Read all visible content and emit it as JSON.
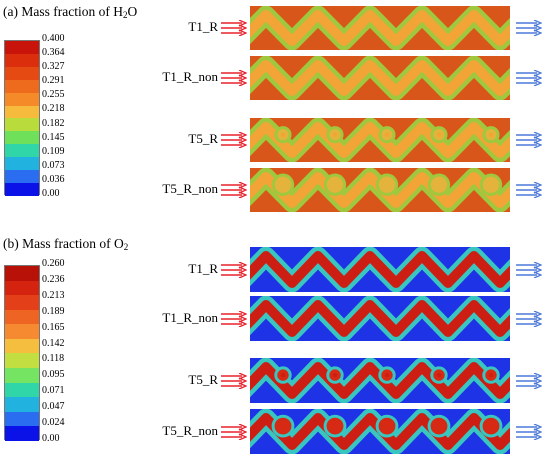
{
  "panels": [
    {
      "id": "h2o",
      "label_prefix": "(a) Mass fraction of H",
      "label_sub": "2",
      "label_suffix": "O",
      "ticks": [
        "0.400",
        "0.364",
        "0.327",
        "0.291",
        "0.255",
        "0.218",
        "0.182",
        "0.145",
        "0.109",
        "0.073",
        "0.036",
        "0.00"
      ],
      "colors": [
        "#c8140a",
        "#db2e0c",
        "#e54a12",
        "#ee6a1c",
        "#f58a28",
        "#f6ba3c",
        "#b9dc3c",
        "#6fe05a",
        "#30d6a8",
        "#22b2e0",
        "#2a6df0",
        "#0a12e8"
      ],
      "background": "#d9561a",
      "channel": "#9fc83e",
      "core": "#f2a437",
      "blob": "#e3b33c",
      "cases": [
        "T1_R",
        "T1_R_non",
        "T5_R",
        "T5_R_non"
      ]
    },
    {
      "id": "o2",
      "label_prefix": "(b) Mass fraction of O",
      "label_sub": "2",
      "label_suffix": "",
      "ticks": [
        "0.260",
        "0.236",
        "0.213",
        "0.189",
        "0.165",
        "0.142",
        "0.118",
        "0.095",
        "0.071",
        "0.047",
        "0.024",
        "0.00"
      ],
      "colors": [
        "#b81208",
        "#d42410",
        "#e3401a",
        "#ee6422",
        "#f58a30",
        "#f6be3e",
        "#c3de40",
        "#74e462",
        "#30d6a8",
        "#22b2e0",
        "#2a6df0",
        "#0a12e8"
      ],
      "background": "#1e32e6",
      "channel": "#39c5c0",
      "core": "#cc1e12",
      "blob": "#d62a14",
      "cases": [
        "T1_R",
        "T1_R_non",
        "T5_R",
        "T5_R_non"
      ]
    }
  ]
}
